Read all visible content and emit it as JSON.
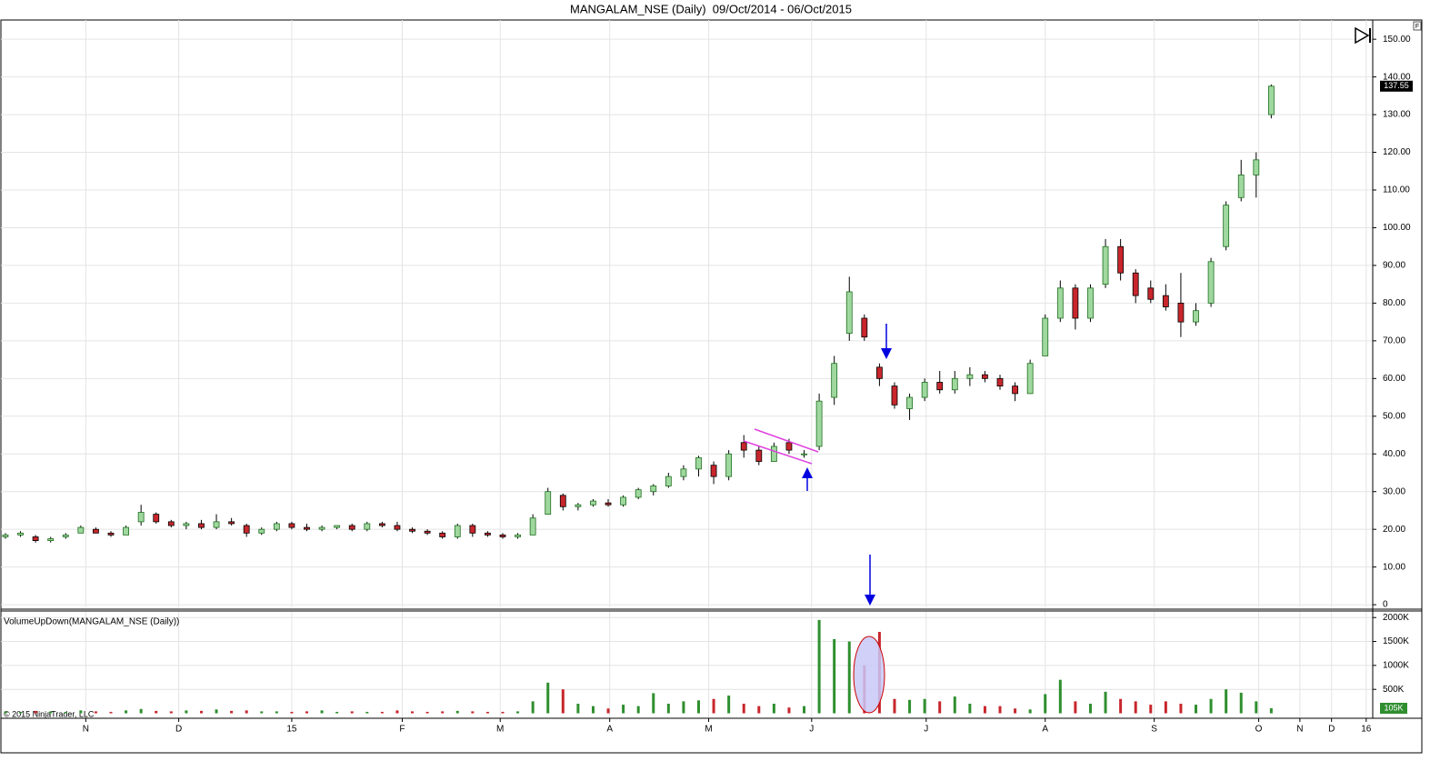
{
  "chart_data": {
    "type": "candlestick",
    "title": "MANGALAM_NSE (Daily)  09/Oct/2014 - 06/Oct/2015",
    "indicator_label": "VolumeUpDown(MANGALAM_NSE (Daily))",
    "copyright": "© 2015 NinjaTrader, LLC",
    "corner_label": "F",
    "up_color": "#2f8f2f",
    "down_color": "#c8262c",
    "grid": true,
    "x": [
      0,
      3,
      6,
      9,
      12,
      15,
      18,
      21,
      24,
      27,
      30,
      33,
      36,
      39,
      42,
      45,
      48,
      51,
      54,
      57,
      60,
      63,
      66,
      69,
      72,
      75,
      78,
      81,
      84,
      87,
      90,
      93,
      96,
      99,
      102,
      105,
      108,
      111,
      114,
      117,
      120,
      123,
      126,
      129,
      132,
      135,
      138,
      141,
      144,
      147,
      150,
      153,
      156,
      159,
      162,
      165,
      168,
      171,
      174,
      177,
      180,
      183,
      186,
      189,
      192,
      195,
      198,
      201,
      204,
      207,
      210,
      213,
      216,
      219,
      222,
      225,
      228,
      231,
      234,
      237,
      240,
      243,
      246,
      249,
      252
    ],
    "open": [
      18,
      18.5,
      18,
      17,
      18,
      19,
      20,
      19,
      18.5,
      22,
      24,
      22,
      21,
      21.5,
      20.5,
      22,
      21,
      19,
      20,
      21.5,
      20.5,
      20,
      20.5,
      21,
      20,
      21.5,
      21,
      20,
      19.5,
      19,
      18,
      21,
      19,
      18.5,
      18,
      18.5,
      24,
      29,
      26,
      26.5,
      27,
      26.5,
      28.5,
      30,
      31.5,
      34,
      36,
      37,
      34,
      43,
      41,
      38,
      43,
      40,
      42,
      55,
      72,
      76,
      63,
      58,
      52,
      55,
      59,
      57,
      60,
      61,
      60,
      58,
      56,
      66,
      76,
      84,
      76,
      85,
      95,
      88,
      84,
      82,
      80,
      75,
      80,
      95,
      108,
      114,
      130
    ],
    "high": [
      19,
      19.5,
      18.5,
      18,
      19,
      21,
      20.5,
      19.5,
      21,
      26.5,
      24.5,
      22.5,
      22,
      22.5,
      24,
      23,
      21.5,
      20.5,
      22,
      22,
      21.5,
      21,
      21,
      21.5,
      22,
      22,
      22,
      20.5,
      20,
      19.5,
      21.5,
      21.5,
      19.5,
      19,
      19,
      24,
      31,
      29.5,
      27,
      28,
      28,
      29,
      31,
      32,
      35,
      37,
      39.5,
      38,
      41,
      45,
      42,
      43,
      44,
      41,
      56,
      66,
      87,
      77,
      64,
      59,
      56,
      60,
      62,
      62,
      63,
      62,
      61,
      59,
      65,
      77,
      86,
      85,
      85,
      97,
      97,
      89,
      86,
      85,
      88,
      80,
      92,
      107,
      118,
      120,
      138
    ],
    "low": [
      17.5,
      18,
      16.5,
      16.5,
      17.5,
      19,
      19,
      18,
      18.5,
      21,
      21.5,
      20.5,
      20,
      20,
      20,
      21,
      18,
      18.5,
      19.5,
      20,
      19.5,
      19.5,
      20,
      19.5,
      19.5,
      20.5,
      19.5,
      19,
      18.5,
      17.5,
      17.5,
      18,
      18,
      17.5,
      17.5,
      18.5,
      24,
      25,
      25,
      26,
      26,
      26,
      28,
      29,
      31,
      33,
      34,
      32,
      33,
      39,
      37,
      38,
      40,
      39,
      41,
      53,
      70,
      70,
      58,
      52,
      49,
      54,
      56,
      56,
      58,
      59,
      57,
      54,
      56,
      66,
      75,
      73,
      75,
      84,
      86,
      80,
      80,
      78,
      71,
      74,
      79,
      94,
      107,
      108,
      129
    ],
    "close": [
      18.5,
      19,
      17,
      17.5,
      18.5,
      20.5,
      19,
      18.5,
      20.5,
      24.5,
      22,
      21,
      21.5,
      20.5,
      22,
      21.5,
      19,
      20,
      21.5,
      20.5,
      20,
      20.5,
      21,
      20,
      21.5,
      21,
      20,
      19.5,
      19,
      18,
      21,
      19,
      18.5,
      18,
      18.5,
      23,
      30,
      26,
      26.5,
      27.5,
      26.5,
      28.5,
      30.5,
      31.5,
      34,
      36,
      39,
      34,
      40,
      41,
      38,
      42,
      41,
      40,
      54,
      64,
      83,
      71,
      60,
      53,
      55,
      59,
      57,
      60,
      61,
      60,
      58,
      56,
      64,
      76,
      84,
      76,
      84,
      95,
      88,
      82,
      81,
      79,
      75,
      78,
      91,
      106,
      114,
      118,
      137.55
    ],
    "volume": [
      40000,
      30000,
      50000,
      40000,
      30000,
      60000,
      40000,
      30000,
      60000,
      90000,
      50000,
      40000,
      60000,
      50000,
      80000,
      50000,
      60000,
      40000,
      40000,
      30000,
      40000,
      60000,
      30000,
      40000,
      30000,
      30000,
      60000,
      40000,
      30000,
      40000,
      50000,
      40000,
      30000,
      30000,
      40000,
      250000,
      640000,
      500000,
      200000,
      150000,
      100000,
      180000,
      150000,
      420000,
      200000,
      250000,
      270000,
      300000,
      370000,
      200000,
      150000,
      200000,
      120000,
      150000,
      1950000,
      1550000,
      1500000,
      1000000,
      1700000,
      300000,
      280000,
      300000,
      250000,
      350000,
      200000,
      150000,
      150000,
      100000,
      80000,
      400000,
      700000,
      250000,
      200000,
      450000,
      300000,
      250000,
      180000,
      250000,
      200000,
      180000,
      300000,
      500000,
      430000,
      250000,
      105000
    ],
    "volume_last_label": "105K",
    "xlim": [
      -0.9,
      272.2
    ],
    "xticks": [
      {
        "value": 16,
        "label": "N"
      },
      {
        "value": 34.5,
        "label": "D"
      },
      {
        "value": 57,
        "label": "15"
      },
      {
        "value": 79,
        "label": "F"
      },
      {
        "value": 98.5,
        "label": "M"
      },
      {
        "value": 120.3,
        "label": "A"
      },
      {
        "value": 140,
        "label": "M"
      },
      {
        "value": 160.5,
        "label": "J"
      },
      {
        "value": 183.3,
        "label": "J"
      },
      {
        "value": 207,
        "label": "A"
      },
      {
        "value": 228.7,
        "label": "S"
      },
      {
        "value": 249.5,
        "label": "O"
      },
      {
        "value": 257.7,
        "label": "N"
      },
      {
        "value": 264,
        "label": "D"
      },
      {
        "value": 270.9,
        "label": "16"
      }
    ],
    "ylim": [
      -0.7,
      155.1
    ],
    "yticks": [
      0,
      {
        "value": 10,
        "label": "10.00"
      },
      {
        "value": 20,
        "label": "20.00"
      },
      {
        "value": 30,
        "label": "30.00"
      },
      {
        "value": 40,
        "label": "40.00"
      },
      {
        "value": 50,
        "label": "50.00"
      },
      {
        "value": 60,
        "label": "60.00"
      },
      {
        "value": 70,
        "label": "70.00"
      },
      {
        "value": 80,
        "label": "80.00"
      },
      {
        "value": 90,
        "label": "90.00"
      },
      {
        "value": 100,
        "label": "100.00"
      },
      {
        "value": 110,
        "label": "110.00"
      },
      {
        "value": 120,
        "label": "120.00"
      },
      {
        "value": 130,
        "label": "130.00"
      },
      {
        "value": 140,
        "label": "140.00"
      },
      {
        "value": 150,
        "label": "150.00"
      }
    ],
    "volume_ylim": [
      -104000,
      2137000
    ],
    "volume_yticks": [
      {
        "value": 500000,
        "label": "500K"
      },
      {
        "value": 1000000,
        "label": "1000K"
      },
      {
        "value": 1500000,
        "label": "1500K"
      },
      {
        "value": 2000000,
        "label": "2000K"
      }
    ]
  }
}
